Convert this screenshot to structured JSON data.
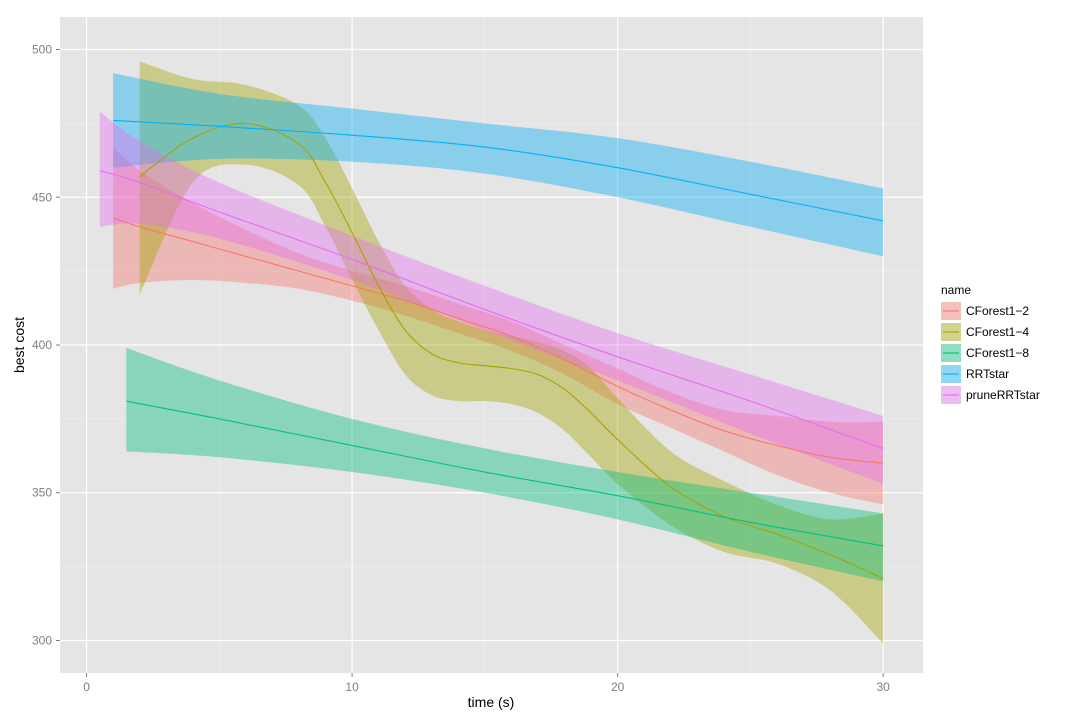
{
  "chart_data": {
    "type": "line",
    "xlabel": "time (s)",
    "ylabel": "best cost",
    "xlim": [
      -1,
      31.5
    ],
    "ylim": [
      289,
      511
    ],
    "x_ticks": [
      0,
      10,
      20,
      30
    ],
    "y_ticks": [
      300,
      350,
      400,
      450,
      500
    ],
    "grid": true,
    "legend": {
      "title": "name",
      "placement": "right"
    },
    "series": [
      {
        "name": "CForest1−2",
        "color": "#F8766D",
        "x": [
          1,
          2,
          4,
          6,
          8,
          10,
          12,
          14,
          16,
          18,
          20,
          22,
          24,
          26,
          28,
          30
        ],
        "y": [
          443,
          440,
          435,
          430,
          425,
          420,
          415,
          409,
          403,
          395,
          386,
          378,
          371,
          366,
          362,
          360
        ],
        "lower": [
          419,
          421,
          422,
          421,
          419,
          415,
          410,
          404,
          398,
          390,
          380,
          372,
          364,
          356,
          350,
          346
        ],
        "upper": [
          467,
          459,
          448,
          439,
          431,
          425,
          420,
          414,
          408,
          400,
          392,
          384,
          378,
          376,
          374,
          374
        ]
      },
      {
        "name": "CForest1−4",
        "color": "#A3A500",
        "x": [
          2,
          4,
          6,
          8,
          9,
          10,
          11,
          12,
          13,
          14,
          15,
          16,
          17,
          18,
          19,
          20,
          22,
          24,
          26,
          28,
          30
        ],
        "y": [
          457,
          470,
          475,
          468,
          455,
          438,
          420,
          405,
          397,
          394,
          393,
          392,
          390,
          385,
          377,
          368,
          352,
          342,
          336,
          329,
          321
        ],
        "lower": [
          417,
          455,
          461,
          454,
          440,
          422,
          405,
          390,
          383,
          381,
          381,
          380,
          377,
          371,
          362,
          353,
          339,
          330,
          326,
          317,
          299
        ],
        "upper": [
          496,
          490,
          488,
          481,
          470,
          453,
          435,
          420,
          412,
          408,
          405,
          403,
          401,
          398,
          392,
          382,
          364,
          354,
          346,
          341,
          343
        ]
      },
      {
        "name": "CForest1−8",
        "color": "#00BF7D",
        "x": [
          1.5,
          5,
          10,
          15,
          20,
          25,
          30
        ],
        "y": [
          381,
          375,
          366,
          357,
          349,
          340,
          332
        ],
        "lower": [
          364,
          362,
          357,
          350,
          341,
          330,
          320
        ],
        "upper": [
          399,
          388,
          375,
          365,
          357,
          350,
          343
        ]
      },
      {
        "name": "RRTstar",
        "color": "#00B0F6",
        "x": [
          1,
          5,
          10,
          15,
          20,
          25,
          30
        ],
        "y": [
          476,
          474,
          471,
          467,
          460,
          451,
          442
        ],
        "lower": [
          460,
          463,
          462,
          458,
          450,
          440,
          430
        ],
        "upper": [
          492,
          485,
          480,
          475,
          470,
          462,
          453
        ]
      },
      {
        "name": "pruneRRTstar",
        "color": "#E76BF3",
        "x": [
          0.5,
          2,
          5,
          10,
          15,
          20,
          25,
          30
        ],
        "y": [
          459,
          455,
          445,
          429,
          412,
          396,
          381,
          365
        ],
        "lower": [
          440,
          441,
          436,
          422,
          405,
          388,
          370,
          353
        ],
        "upper": [
          479,
          469,
          455,
          437,
          420,
          404,
          390,
          376
        ]
      }
    ]
  }
}
